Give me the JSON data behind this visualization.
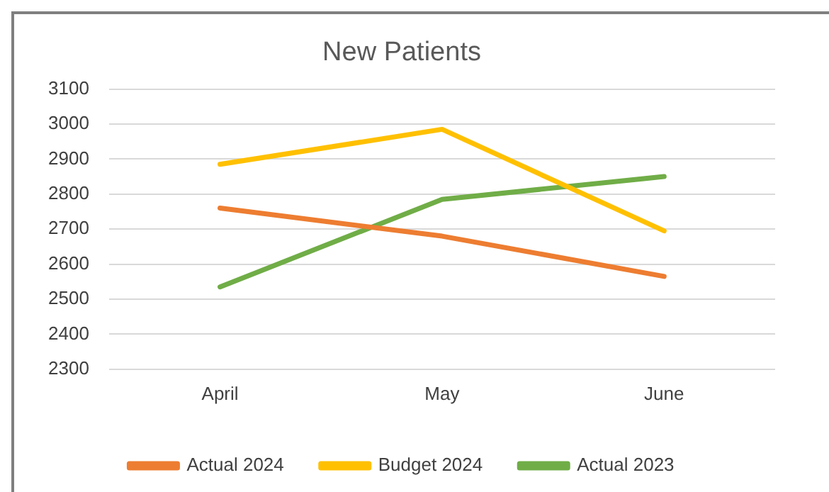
{
  "chart_data": {
    "type": "line",
    "title": "New Patients",
    "categories": [
      "April",
      "May",
      "June"
    ],
    "series": [
      {
        "name": "Actual 2024",
        "color": "#ed7d31",
        "values": [
          2760,
          2680,
          2565
        ]
      },
      {
        "name": "Budget 2024",
        "color": "#ffc000",
        "values": [
          2885,
          2985,
          2695
        ]
      },
      {
        "name": "Actual 2023",
        "color": "#70ad47",
        "values": [
          2535,
          2785,
          2850
        ]
      }
    ],
    "ylim": [
      2300,
      3100
    ],
    "yticks": [
      2300,
      2400,
      2500,
      2600,
      2700,
      2800,
      2900,
      3000,
      3100
    ],
    "grid": "y",
    "legend": "bottom",
    "marker": "none",
    "line_style": "solid"
  }
}
